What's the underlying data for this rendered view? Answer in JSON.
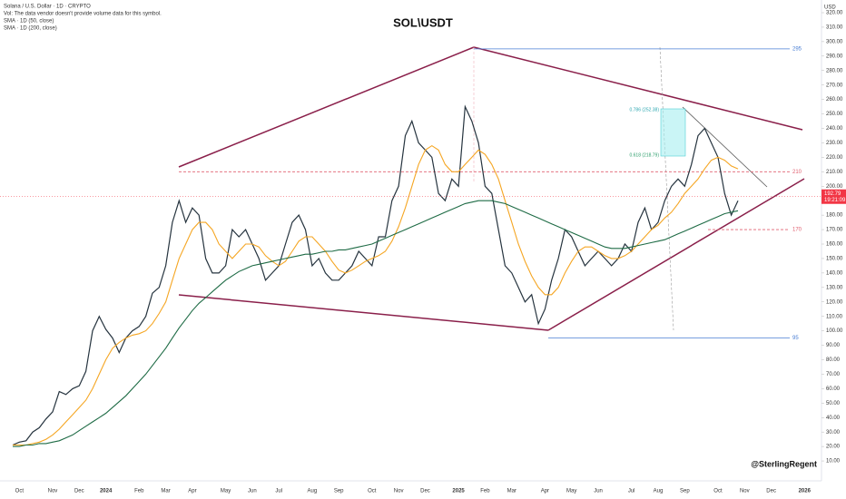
{
  "chart_data": {
    "type": "line",
    "symbol": "Solana / U.S. Dollar · 1D · CRYPTO",
    "volume_note": "Vol: The data vendor doesn't provide volume data for this symbol.",
    "title": "SOL\\USDT",
    "currency": "USD",
    "watermark": "@SterlingRegent",
    "categories": [
      null,
      "Oct",
      null,
      null,
      null,
      null,
      "Nov",
      null,
      null,
      null,
      "Dec",
      null,
      null,
      null,
      "2024",
      null,
      null,
      null,
      null,
      "Feb",
      null,
      null,
      null,
      "Mar",
      null,
      null,
      null,
      "Apr",
      null,
      null,
      null,
      null,
      "May",
      null,
      null,
      null,
      "Jun",
      null,
      null,
      null,
      "Jul",
      null,
      null,
      null,
      null,
      "Aug",
      null,
      null,
      null,
      "Sep",
      null,
      null,
      null,
      null,
      "Oct",
      null,
      null,
      null,
      "Nov",
      null,
      null,
      null,
      "Dec",
      null,
      null,
      null,
      null,
      "2025",
      null,
      null,
      null,
      "Feb",
      null,
      null,
      null,
      "Mar",
      null,
      null,
      null,
      null,
      "Apr",
      null,
      null,
      null,
      "May",
      null,
      null,
      null,
      "Jun",
      null,
      null,
      null,
      null,
      "Jul",
      null,
      null,
      null,
      "Aug",
      null,
      null,
      null,
      "Sep",
      null,
      null,
      null,
      null,
      "Oct",
      null,
      null,
      null,
      "Nov",
      null,
      null,
      null,
      "Dec",
      null,
      null,
      null,
      null,
      "2026",
      null,
      null
    ],
    "series": [
      {
        "name": "SOL\\USDT",
        "color": "#26343f",
        "values": [
          21,
          23,
          24,
          30,
          33,
          39,
          44,
          58,
          56,
          60,
          62,
          72,
          100,
          110,
          101,
          95,
          85,
          95,
          100,
          103,
          110,
          126,
          130,
          145,
          175,
          190,
          175,
          185,
          180,
          150,
          140,
          140,
          145,
          170,
          165,
          170,
          160,
          150,
          135,
          140,
          145,
          160,
          175,
          180,
          170,
          145,
          150,
          140,
          135,
          135,
          140,
          145,
          155,
          150,
          145,
          165,
          165,
          190,
          200,
          235,
          245,
          230,
          225,
          220,
          195,
          190,
          205,
          200,
          255,
          245,
          230,
          200,
          195,
          170,
          145,
          140,
          130,
          120,
          125,
          105,
          115,
          135,
          150,
          170,
          165,
          155,
          145,
          150,
          155,
          150,
          145,
          150,
          160,
          155,
          175,
          185,
          170,
          175,
          190,
          200,
          205,
          200,
          215,
          235,
          240,
          230,
          220,
          195,
          180,
          190,
          null,
          null,
          null,
          null,
          null,
          null,
          null,
          null,
          null,
          null,
          null,
          null
        ]
      },
      {
        "name": "SMA · 1D (50, close)",
        "color": "#f5a623",
        "values": [
          21,
          21,
          21,
          22,
          23,
          25,
          28,
          32,
          37,
          42,
          47,
          52,
          60,
          70,
          80,
          88,
          92,
          95,
          97,
          98,
          100,
          105,
          112,
          120,
          135,
          150,
          160,
          170,
          175,
          175,
          170,
          160,
          155,
          150,
          155,
          160,
          160,
          158,
          152,
          148,
          145,
          148,
          155,
          162,
          165,
          165,
          160,
          155,
          148,
          142,
          140,
          142,
          145,
          148,
          150,
          152,
          155,
          162,
          172,
          185,
          200,
          215,
          225,
          228,
          225,
          215,
          210,
          210,
          215,
          220,
          225,
          222,
          215,
          205,
          190,
          175,
          160,
          148,
          138,
          130,
          125,
          125,
          130,
          140,
          148,
          155,
          158,
          158,
          155,
          152,
          150,
          150,
          152,
          155,
          160,
          165,
          170,
          173,
          178,
          182,
          188,
          195,
          200,
          205,
          212,
          218,
          220,
          218,
          214,
          212,
          null,
          null,
          null,
          null,
          null,
          null,
          null,
          null,
          null,
          null,
          null,
          null
        ]
      },
      {
        "name": "SMA · 1D (200, close)",
        "color": "#1e6b45",
        "values": [
          20,
          20,
          21,
          21,
          22,
          22,
          23,
          24,
          26,
          28,
          31,
          34,
          37,
          40,
          43,
          47,
          51,
          55,
          60,
          65,
          70,
          76,
          82,
          88,
          95,
          102,
          108,
          114,
          119,
          123,
          127,
          131,
          135,
          138,
          141,
          143,
          145,
          146,
          147,
          148,
          149,
          150,
          151,
          152,
          153,
          153,
          154,
          155,
          155,
          156,
          156,
          157,
          158,
          159,
          160,
          162,
          164,
          166,
          168,
          170,
          172,
          174,
          176,
          178,
          180,
          182,
          184,
          186,
          188,
          189,
          190,
          190,
          190,
          189,
          188,
          186,
          184,
          182,
          180,
          178,
          176,
          174,
          172,
          170,
          168,
          166,
          164,
          162,
          160,
          158,
          157,
          157,
          157,
          158,
          159,
          160,
          161,
          162,
          163,
          165,
          167,
          169,
          171,
          173,
          175,
          177,
          179,
          181,
          182,
          183,
          null,
          null,
          null,
          null,
          null,
          null,
          null,
          null,
          null,
          null,
          null,
          null
        ]
      }
    ],
    "levels": [
      295,
      210,
      170,
      95
    ],
    "fib_labels": [
      "0.786 (252.38)",
      "0.618 (218.79)"
    ],
    "last_price": 192.79,
    "countdown": "19:21:09",
    "ylim": [
      0,
      320
    ],
    "yticks": [
      {
        "value": 10,
        "label": "10.00"
      },
      {
        "value": 20,
        "label": "20.00"
      },
      {
        "value": 30,
        "label": "30.00"
      },
      {
        "value": 40,
        "label": "40.00"
      },
      {
        "value": 50,
        "label": "50.00"
      },
      {
        "value": 60,
        "label": "60.00"
      },
      {
        "value": 70,
        "label": "70.00"
      },
      {
        "value": 80,
        "label": "80.00"
      },
      {
        "value": 90,
        "label": "90.00"
      },
      {
        "value": 100,
        "label": "100.00"
      },
      {
        "value": 110,
        "label": "110.00"
      },
      {
        "value": 120,
        "label": "120.00"
      },
      {
        "value": 130,
        "label": "130.00"
      },
      {
        "value": 140,
        "label": "140.00"
      },
      {
        "value": 150,
        "label": "150.00"
      },
      {
        "value": 160,
        "label": "160.00"
      },
      {
        "value": 170,
        "label": "170.00"
      },
      {
        "value": 180,
        "label": "180.00"
      },
      {
        "value": 190,
        "label": "190.00"
      },
      {
        "value": 200,
        "label": "200.00"
      },
      {
        "value": 210,
        "label": "210.00"
      },
      {
        "value": 220,
        "label": "220.00"
      },
      {
        "value": 230,
        "label": "230.00"
      },
      {
        "value": 240,
        "label": "240.00"
      },
      {
        "value": 250,
        "label": "250.00"
      },
      {
        "value": 260,
        "label": "260.00"
      },
      {
        "value": 270,
        "label": "270.00"
      },
      {
        "value": 280,
        "label": "280.00"
      },
      {
        "value": 290,
        "label": "290.00"
      },
      {
        "value": 300,
        "label": "300.00"
      },
      {
        "value": 310,
        "label": "310.00"
      },
      {
        "value": 320,
        "label": "320.00"
      }
    ]
  }
}
